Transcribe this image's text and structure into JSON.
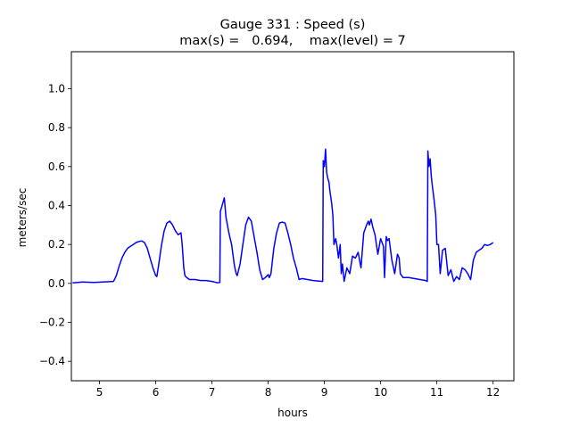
{
  "chart_data": {
    "type": "line",
    "title": "Gauge 331 : Speed (s)",
    "subtitle": "max(s) =   0.694,    max(level) = 7",
    "xlabel": "hours",
    "ylabel": "meters/sec",
    "xlim": [
      4.5,
      12.37
    ],
    "ylim": [
      -0.5,
      1.19
    ],
    "xticks": [
      5,
      6,
      7,
      8,
      9,
      10,
      11,
      12
    ],
    "xtick_labels": [
      "5",
      "6",
      "7",
      "8",
      "9",
      "10",
      "11",
      "12"
    ],
    "yticks": [
      -0.4,
      -0.2,
      0.0,
      0.2,
      0.4,
      0.6,
      0.8,
      1.0
    ],
    "ytick_labels": [
      "−0.4",
      "−0.2",
      "0.0",
      "0.2",
      "0.4",
      "0.6",
      "0.8",
      "1.0"
    ],
    "grid": false,
    "series": [
      {
        "color": "#0000ff",
        "x": [
          4.52,
          4.7,
          4.9,
          5.1,
          5.25,
          5.3,
          5.35,
          5.4,
          5.45,
          5.5,
          5.55,
          5.6,
          5.65,
          5.7,
          5.75,
          5.8,
          5.85,
          5.9,
          5.95,
          6.0,
          6.02,
          6.05,
          6.1,
          6.15,
          6.2,
          6.25,
          6.3,
          6.35,
          6.4,
          6.45,
          6.47,
          6.5,
          6.52,
          6.55,
          6.6,
          6.7,
          6.8,
          6.9,
          7.0,
          7.1,
          7.14,
          7.15,
          7.17,
          7.2,
          7.22,
          7.25,
          7.3,
          7.35,
          7.4,
          7.43,
          7.45,
          7.5,
          7.55,
          7.6,
          7.65,
          7.7,
          7.75,
          7.8,
          7.85,
          7.9,
          7.95,
          8.0,
          8.02,
          8.05,
          8.1,
          8.15,
          8.2,
          8.25,
          8.3,
          8.35,
          8.4,
          8.45,
          8.5,
          8.55,
          8.6,
          8.7,
          8.8,
          8.97,
          8.98,
          9.0,
          9.02,
          9.04,
          9.06,
          9.08,
          9.1,
          9.13,
          9.15,
          9.17,
          9.2,
          9.22,
          9.25,
          9.28,
          9.3,
          9.32,
          9.35,
          9.4,
          9.45,
          9.5,
          9.55,
          9.6,
          9.65,
          9.7,
          9.75,
          9.78,
          9.8,
          9.83,
          9.86,
          9.9,
          9.95,
          10.0,
          10.05,
          10.07,
          10.1,
          10.12,
          10.15,
          10.2,
          10.25,
          10.3,
          10.33,
          10.35,
          10.4,
          10.5,
          10.6,
          10.7,
          10.8,
          10.83,
          10.84,
          10.86,
          10.88,
          10.9,
          10.92,
          10.95,
          10.98,
          11.0,
          11.03,
          11.06,
          11.1,
          11.15,
          11.2,
          11.25,
          11.3,
          11.35,
          11.4,
          11.45,
          11.5,
          11.55,
          11.6,
          11.65,
          11.7,
          11.75,
          11.8,
          11.85,
          11.9,
          11.95,
          12.0
        ],
        "y": [
          0.003,
          0.007,
          0.005,
          0.008,
          0.01,
          0.04,
          0.09,
          0.13,
          0.16,
          0.18,
          0.19,
          0.2,
          0.21,
          0.215,
          0.218,
          0.21,
          0.18,
          0.13,
          0.08,
          0.04,
          0.035,
          0.09,
          0.19,
          0.27,
          0.31,
          0.32,
          0.3,
          0.27,
          0.25,
          0.26,
          0.2,
          0.08,
          0.04,
          0.03,
          0.02,
          0.02,
          0.015,
          0.015,
          0.01,
          0.003,
          0.005,
          0.37,
          0.39,
          0.42,
          0.44,
          0.34,
          0.26,
          0.2,
          0.09,
          0.05,
          0.04,
          0.1,
          0.2,
          0.3,
          0.34,
          0.32,
          0.24,
          0.16,
          0.07,
          0.02,
          0.03,
          0.045,
          0.03,
          0.05,
          0.18,
          0.26,
          0.31,
          0.315,
          0.31,
          0.26,
          0.2,
          0.13,
          0.08,
          0.02,
          0.025,
          0.02,
          0.015,
          0.01,
          0.63,
          0.6,
          0.69,
          0.57,
          0.54,
          0.52,
          0.47,
          0.41,
          0.35,
          0.2,
          0.23,
          0.2,
          0.13,
          0.2,
          0.05,
          0.1,
          0.01,
          0.08,
          0.05,
          0.14,
          0.13,
          0.16,
          0.08,
          0.26,
          0.3,
          0.32,
          0.3,
          0.33,
          0.29,
          0.25,
          0.15,
          0.23,
          0.19,
          0.03,
          0.24,
          0.22,
          0.23,
          0.12,
          0.05,
          0.15,
          0.13,
          0.05,
          0.03,
          0.03,
          0.025,
          0.02,
          0.015,
          0.01,
          0.68,
          0.6,
          0.64,
          0.55,
          0.5,
          0.43,
          0.35,
          0.2,
          0.2,
          0.05,
          0.17,
          0.18,
          0.04,
          0.07,
          0.01,
          0.035,
          0.02,
          0.08,
          0.07,
          0.05,
          0.02,
          0.12,
          0.16,
          0.17,
          0.18,
          0.2,
          0.195,
          0.2,
          0.21
        ]
      }
    ]
  }
}
